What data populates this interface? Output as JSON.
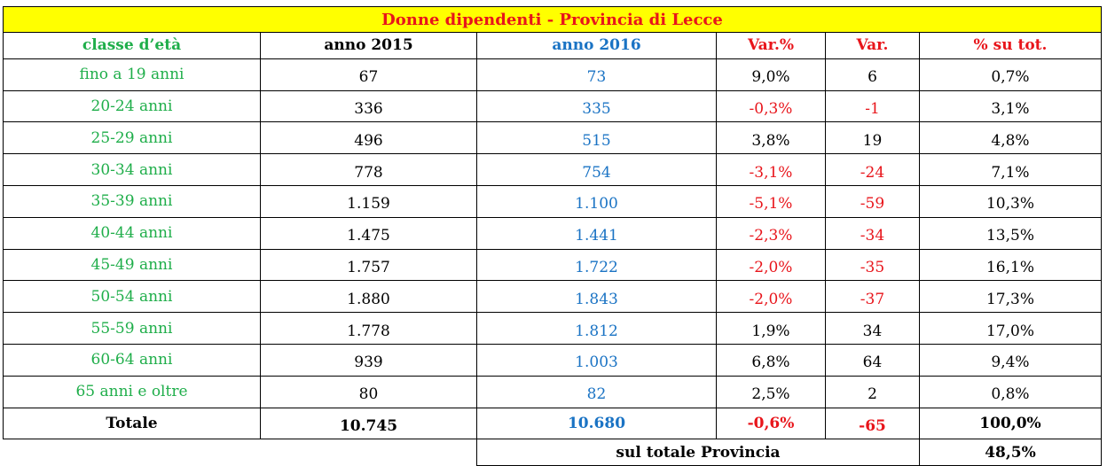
{
  "title": "Donne dipendenti - Provincia di Lecce",
  "headers": {
    "classe": "classe d’età",
    "y2015": "anno 2015",
    "y2016": "anno 2016",
    "var_pct": "Var.%",
    "var": "Var.",
    "pct_tot": "% su tot."
  },
  "rows": [
    {
      "classe": "fino a 19 anni",
      "y2015": "67",
      "y2016": "73",
      "var_pct": "9,0%",
      "var": "6",
      "pct_tot": "0,7%",
      "negative": false
    },
    {
      "classe": "20-24 anni",
      "y2015": "336",
      "y2016": "335",
      "var_pct": "-0,3%",
      "var": "-1",
      "pct_tot": "3,1%",
      "negative": true
    },
    {
      "classe": "25-29 anni",
      "y2015": "496",
      "y2016": "515",
      "var_pct": "3,8%",
      "var": "19",
      "pct_tot": "4,8%",
      "negative": false
    },
    {
      "classe": "30-34 anni",
      "y2015": "778",
      "y2016": "754",
      "var_pct": "-3,1%",
      "var": "-24",
      "pct_tot": "7,1%",
      "negative": true
    },
    {
      "classe": "35-39 anni",
      "y2015": "1.159",
      "y2016": "1.100",
      "var_pct": "-5,1%",
      "var": "-59",
      "pct_tot": "10,3%",
      "negative": true
    },
    {
      "classe": "40-44 anni",
      "y2015": "1.475",
      "y2016": "1.441",
      "var_pct": "-2,3%",
      "var": "-34",
      "pct_tot": "13,5%",
      "negative": true
    },
    {
      "classe": "45-49 anni",
      "y2015": "1.757",
      "y2016": "1.722",
      "var_pct": "-2,0%",
      "var": "-35",
      "pct_tot": "16,1%",
      "negative": true
    },
    {
      "classe": "50-54 anni",
      "y2015": "1.880",
      "y2016": "1.843",
      "var_pct": "-2,0%",
      "var": "-37",
      "pct_tot": "17,3%",
      "negative": true
    },
    {
      "classe": "55-59 anni",
      "y2015": "1.778",
      "y2016": "1.812",
      "var_pct": "1,9%",
      "var": "34",
      "pct_tot": "17,0%",
      "negative": false
    },
    {
      "classe": "60-64 anni",
      "y2015": "939",
      "y2016": "1.003",
      "var_pct": "6,8%",
      "var": "64",
      "pct_tot": "9,4%",
      "negative": false
    },
    {
      "classe": "65 anni e oltre",
      "y2015": "80",
      "y2016": "82",
      "var_pct": "2,5%",
      "var": "2",
      "pct_tot": "0,8%",
      "negative": false
    }
  ],
  "total": {
    "label": "Totale",
    "y2015": "10.745",
    "y2016": "10.680",
    "var_pct": "-0,6%",
    "var": "-65",
    "pct_tot": "100,0%"
  },
  "footer": {
    "label": "sul totale Provincia",
    "value": "48,5%"
  },
  "colors": {
    "title_bg": "#ffff00",
    "title_text": "#e8151b",
    "age_class": "#1fae4a",
    "year_2016": "#1a73c4",
    "negative": "#e8151b"
  }
}
